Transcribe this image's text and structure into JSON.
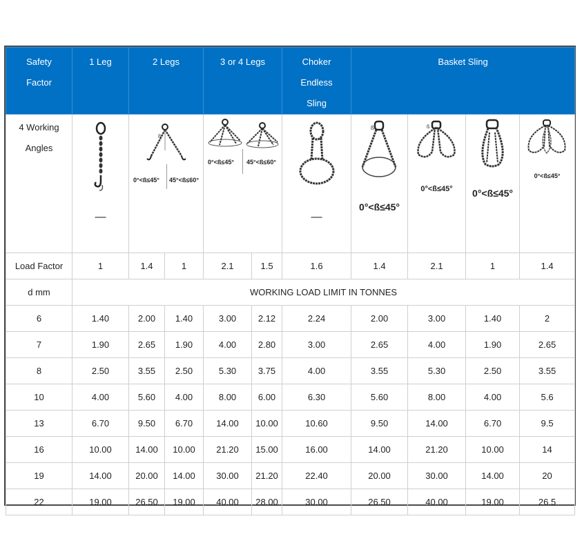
{
  "header": {
    "safety_factor": "Safety Factor",
    "leg1": "1 Leg",
    "legs2": "2 Legs",
    "legs34": "3 or 4 Legs",
    "choker": "Choker Endless Sling",
    "basket": "Basket Sling"
  },
  "angles_row": {
    "label": "4 Working Angles",
    "leg1_dash": "—",
    "legs2_angle_a": "0°<ß≤45°",
    "legs2_angle_b": "45°<ß≤60°",
    "legs34_angle_a": "0°<ß≤45°",
    "legs34_angle_b": "45°<ß≤60°",
    "choker_dash": "—",
    "basket1_angle": "0°<ß≤45°",
    "basket2_angle": "0°<ß≤45°",
    "basket3_angle": "0°<ß≤45°",
    "basket4_angle": "0°<ß≤45°"
  },
  "load_factor": {
    "label": "Load Factor",
    "values": [
      "1",
      "1.4",
      "1",
      "2.1",
      "1.5",
      "1.6",
      "1.4",
      "2.1",
      "1",
      "1.4"
    ]
  },
  "wll": {
    "label": "d mm",
    "title": "WORKING LOAD LIMIT IN TONNES"
  },
  "rows": [
    {
      "d": "6",
      "values": [
        "1.40",
        "2.00",
        "1.40",
        "3.00",
        "2.12",
        "2.24",
        "2.00",
        "3.00",
        "1.40",
        "2"
      ]
    },
    {
      "d": "7",
      "values": [
        "1.90",
        "2.65",
        "1.90",
        "4.00",
        "2.80",
        "3.00",
        "2.65",
        "4.00",
        "1.90",
        "2.65"
      ]
    },
    {
      "d": "8",
      "values": [
        "2.50",
        "3.55",
        "2.50",
        "5.30",
        "3.75",
        "4.00",
        "3.55",
        "5.30",
        "2.50",
        "3.55"
      ]
    },
    {
      "d": "10",
      "values": [
        "4.00",
        "5.60",
        "4.00",
        "8.00",
        "6.00",
        "6.30",
        "5.60",
        "8.00",
        "4.00",
        "5.6"
      ]
    },
    {
      "d": "13",
      "values": [
        "6.70",
        "9.50",
        "6.70",
        "14.00",
        "10.00",
        "10.60",
        "9.50",
        "14.00",
        "6.70",
        "9.5"
      ]
    },
    {
      "d": "16",
      "values": [
        "10.00",
        "14.00",
        "10.00",
        "21.20",
        "15.00",
        "16.00",
        "14.00",
        "21.20",
        "10.00",
        "14"
      ]
    },
    {
      "d": "19",
      "values": [
        "14.00",
        "20.00",
        "14.00",
        "30.00",
        "21.20",
        "22.40",
        "20.00",
        "30.00",
        "14.00",
        "20"
      ]
    },
    {
      "d": "22",
      "values": [
        "19.00",
        "26.50",
        "19.00",
        "40.00",
        "28.00",
        "30.00",
        "26.50",
        "40.00",
        "19.00",
        "26.5"
      ]
    }
  ]
}
